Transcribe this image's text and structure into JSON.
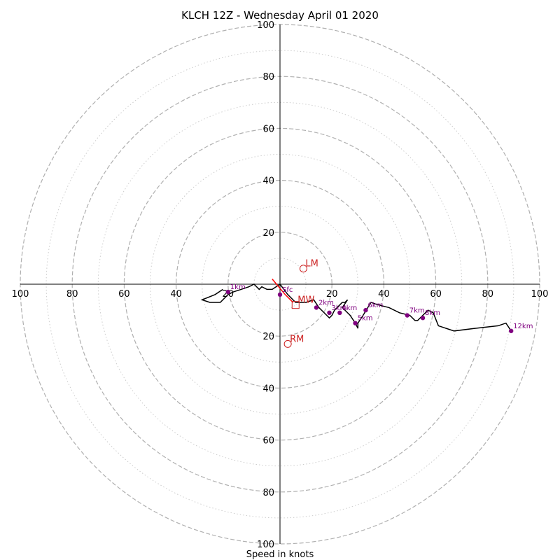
{
  "chart_data": {
    "type": "hodograph",
    "title": "KLCH 12Z - Wednesday April 01 2020",
    "xlabel": "Speed in knots",
    "units": "knots",
    "range": [
      -100,
      100
    ],
    "ring_major": [
      20,
      40,
      60,
      80,
      100
    ],
    "ring_minor": [
      10,
      30,
      50,
      70,
      90
    ],
    "tick_labels": [
      "100",
      "80",
      "60",
      "40",
      "20"
    ],
    "grid": true,
    "colors": {
      "trace": "#000000",
      "low_level": "#ff0000",
      "markers": "#800080",
      "motion": "#cc2222",
      "ring_major": "#b0b0b0",
      "ring_minor": "#cccccc"
    },
    "hodograph_trace": [
      [
        0,
        0
      ],
      [
        3,
        -4
      ],
      [
        6,
        -7
      ],
      [
        10,
        -7
      ],
      [
        13,
        -6
      ],
      [
        15,
        -9
      ],
      [
        18,
        -12
      ],
      [
        19,
        -13
      ],
      [
        20,
        -12
      ],
      [
        21,
        -10
      ],
      [
        22,
        -9
      ],
      [
        23,
        -8
      ],
      [
        24,
        -7
      ],
      [
        25,
        -7
      ],
      [
        26,
        -6
      ],
      [
        24,
        -9
      ],
      [
        25,
        -10
      ],
      [
        27,
        -12
      ],
      [
        29,
        -15
      ],
      [
        30,
        -17
      ],
      [
        30,
        -15
      ],
      [
        32,
        -12
      ],
      [
        35,
        -7
      ],
      [
        38,
        -8
      ],
      [
        42,
        -9
      ],
      [
        46,
        -11
      ],
      [
        50,
        -12
      ],
      [
        52,
        -14
      ],
      [
        53,
        -14
      ],
      [
        55,
        -12
      ],
      [
        57,
        -10
      ],
      [
        59,
        -11
      ],
      [
        61,
        -16
      ],
      [
        67,
        -18
      ],
      [
        75,
        -17
      ],
      [
        84,
        -16
      ],
      [
        87,
        -15
      ],
      [
        89,
        -18
      ]
    ],
    "low_level_trace": [
      [
        -3,
        2
      ],
      [
        2,
        -4
      ],
      [
        5,
        -7
      ]
    ],
    "upper_left_trace": [
      [
        0,
        0
      ],
      [
        -3,
        -2
      ],
      [
        -5,
        -2
      ],
      [
        -7,
        -1
      ],
      [
        -8,
        -2
      ],
      [
        -10,
        0
      ],
      [
        -12,
        -1
      ],
      [
        -15,
        -2
      ],
      [
        -18,
        -3
      ],
      [
        -20,
        -4
      ],
      [
        -23,
        -7
      ],
      [
        -25,
        -7
      ],
      [
        -27,
        -7
      ],
      [
        -30,
        -6
      ],
      [
        -25,
        -4
      ],
      [
        -22,
        -2
      ]
    ],
    "height_markers": [
      {
        "label": "Sfc",
        "u": 0,
        "v": -4
      },
      {
        "label": "1km",
        "u": -20,
        "v": -3
      },
      {
        "label": "2km",
        "u": 14,
        "v": -9
      },
      {
        "label": "3km",
        "u": 19,
        "v": -11
      },
      {
        "label": "4km",
        "u": 23,
        "v": -11
      },
      {
        "label": "5km",
        "u": 29,
        "v": -15
      },
      {
        "label": "6km",
        "u": 33,
        "v": -10
      },
      {
        "label": "7km",
        "u": 49,
        "v": -12
      },
      {
        "label": "8km",
        "u": 55,
        "v": -13
      },
      {
        "label": "12km",
        "u": 89,
        "v": -18
      }
    ],
    "storm_motion": [
      {
        "label": "LM",
        "u": 9,
        "v": 6,
        "marker": "circle"
      },
      {
        "label": "MW",
        "u": 6,
        "v": -8,
        "marker": "square"
      },
      {
        "label": "RM",
        "u": 3,
        "v": -23,
        "marker": "circle"
      }
    ]
  }
}
